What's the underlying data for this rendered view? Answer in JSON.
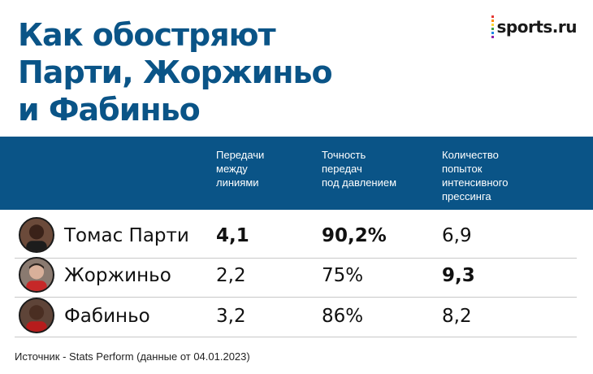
{
  "title": {
    "line1": "Как обостряют",
    "line2": "Парти, Жоржиньо",
    "line3": "и Фабиньо"
  },
  "brand": {
    "name": "sports.ru",
    "dot_colors": [
      "#e53935",
      "#fb8c00",
      "#fdd835",
      "#43a047",
      "#1e88e5",
      "#8e24aa"
    ]
  },
  "colors": {
    "accent": "#0a5487",
    "header_text": "#ffffff"
  },
  "table": {
    "columns": [
      {
        "lines": [
          "Передачи",
          "между",
          "линиями"
        ]
      },
      {
        "lines": [
          "Точность",
          "передач",
          "под давлением"
        ]
      },
      {
        "lines": [
          "Количество",
          "попыток",
          "интенсивного",
          "прессинга"
        ]
      }
    ],
    "rows": [
      {
        "name": "Томас Парти",
        "avatar_icon": "player-photo-icon",
        "values": [
          "4,1",
          "90,2%",
          "6,9"
        ],
        "bold": [
          true,
          true,
          false
        ]
      },
      {
        "name": "Жоржиньо",
        "avatar_icon": "player-photo-icon",
        "values": [
          "2,2",
          "75%",
          "9,3"
        ],
        "bold": [
          false,
          false,
          true
        ]
      },
      {
        "name": "Фабиньо",
        "avatar_icon": "player-photo-icon",
        "values": [
          "3,2",
          "86%",
          "8,2"
        ],
        "bold": [
          false,
          false,
          false
        ]
      }
    ]
  },
  "source": "Источник - Stats Perform (данные от 04.01.2023)"
}
